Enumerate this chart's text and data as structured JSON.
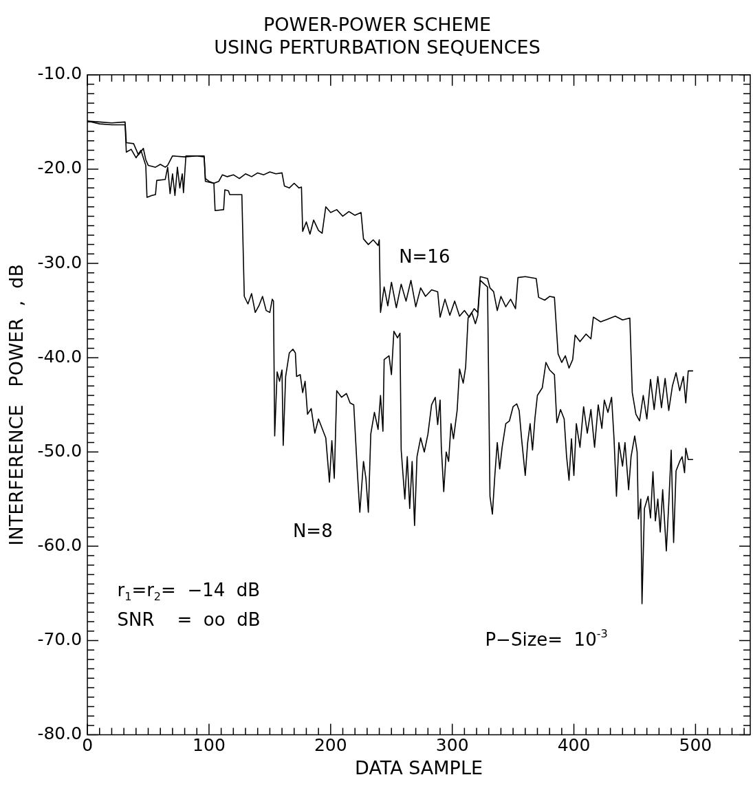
{
  "chart_data": {
    "type": "line",
    "title": "POWER-POWER SCHEME\nUSING PERTURBATION SEQUENCES",
    "xlabel": "DATA SAMPLE",
    "ylabel": "INTERFERENCE   POWER  ,  dB",
    "annotations": [
      "r$_{1}$=r$_{2}$=  −14  dB",
      "SNR    =  oo  dB",
      "P−Size=  10$^{-3}$"
    ],
    "xlim": [
      0,
      545
    ],
    "ylim": [
      -80,
      -10
    ],
    "xticks": [
      0,
      {
        "value": 10,
        "label": null
      },
      {
        "value": 20,
        "label": null
      },
      {
        "value": 30,
        "label": null
      },
      {
        "value": 40,
        "label": null
      },
      {
        "value": 50,
        "label": null
      },
      {
        "value": 60,
        "label": null
      },
      {
        "value": 70,
        "label": null
      },
      {
        "value": 80,
        "label": null
      },
      {
        "value": 90,
        "label": null
      },
      100,
      {
        "value": 110,
        "label": null
      },
      {
        "value": 120,
        "label": null
      },
      {
        "value": 130,
        "label": null
      },
      {
        "value": 140,
        "label": null
      },
      {
        "value": 150,
        "label": null
      },
      {
        "value": 160,
        "label": null
      },
      {
        "value": 170,
        "label": null
      },
      {
        "value": 180,
        "label": null
      },
      {
        "value": 190,
        "label": null
      },
      200,
      {
        "value": 210,
        "label": null
      },
      {
        "value": 220,
        "label": null
      },
      {
        "value": 230,
        "label": null
      },
      {
        "value": 240,
        "label": null
      },
      {
        "value": 250,
        "label": null
      },
      {
        "value": 260,
        "label": null
      },
      {
        "value": 270,
        "label": null
      },
      {
        "value": 280,
        "label": null
      },
      {
        "value": 290,
        "label": null
      },
      300,
      {
        "value": 310,
        "label": null
      },
      {
        "value": 320,
        "label": null
      },
      {
        "value": 330,
        "label": null
      },
      {
        "value": 340,
        "label": null
      },
      {
        "value": 350,
        "label": null
      },
      {
        "value": 360,
        "label": null
      },
      {
        "value": 370,
        "label": null
      },
      {
        "value": 380,
        "label": null
      },
      {
        "value": 390,
        "label": null
      },
      400,
      {
        "value": 410,
        "label": null
      },
      {
        "value": 420,
        "label": null
      },
      {
        "value": 430,
        "label": null
      },
      {
        "value": 440,
        "label": null
      },
      {
        "value": 450,
        "label": null
      },
      {
        "value": 460,
        "label": null
      },
      {
        "value": 470,
        "label": null
      },
      {
        "value": 480,
        "label": null
      },
      {
        "value": 490,
        "label": null
      },
      500,
      {
        "value": 510,
        "label": null
      },
      {
        "value": 520,
        "label": null
      },
      {
        "value": 530,
        "label": null
      },
      {
        "value": 540,
        "label": null
      }
    ],
    "yticks": [
      {
        "value": -80,
        "label": "-80.0"
      },
      {
        "value": -79,
        "label": null
      },
      {
        "value": -78,
        "label": null
      },
      {
        "value": -77,
        "label": null
      },
      {
        "value": -76,
        "label": null
      },
      {
        "value": -75,
        "label": null
      },
      {
        "value": -74,
        "label": null
      },
      {
        "value": -73,
        "label": null
      },
      {
        "value": -72,
        "label": null
      },
      {
        "value": -71,
        "label": null
      },
      {
        "value": -70,
        "label": "-70.0"
      },
      {
        "value": -69,
        "label": null
      },
      {
        "value": -68,
        "label": null
      },
      {
        "value": -67,
        "label": null
      },
      {
        "value": -66,
        "label": null
      },
      {
        "value": -65,
        "label": null
      },
      {
        "value": -64,
        "label": null
      },
      {
        "value": -63,
        "label": null
      },
      {
        "value": -62,
        "label": null
      },
      {
        "value": -61,
        "label": null
      },
      {
        "value": -60,
        "label": "-60.0"
      },
      {
        "value": -59,
        "label": null
      },
      {
        "value": -58,
        "label": null
      },
      {
        "value": -57,
        "label": null
      },
      {
        "value": -56,
        "label": null
      },
      {
        "value": -55,
        "label": null
      },
      {
        "value": -54,
        "label": null
      },
      {
        "value": -53,
        "label": null
      },
      {
        "value": -52,
        "label": null
      },
      {
        "value": -51,
        "label": null
      },
      {
        "value": -50,
        "label": "-50.0"
      },
      {
        "value": -49,
        "label": null
      },
      {
        "value": -48,
        "label": null
      },
      {
        "value": -47,
        "label": null
      },
      {
        "value": -46,
        "label": null
      },
      {
        "value": -45,
        "label": null
      },
      {
        "value": -44,
        "label": null
      },
      {
        "value": -43,
        "label": null
      },
      {
        "value": -42,
        "label": null
      },
      {
        "value": -41,
        "label": null
      },
      {
        "value": -40,
        "label": "-40.0"
      },
      {
        "value": -39,
        "label": null
      },
      {
        "value": -38,
        "label": null
      },
      {
        "value": -37,
        "label": null
      },
      {
        "value": -36,
        "label": null
      },
      {
        "value": -35,
        "label": null
      },
      {
        "value": -34,
        "label": null
      },
      {
        "value": -33,
        "label": null
      },
      {
        "value": -32,
        "label": null
      },
      {
        "value": -31,
        "label": null
      },
      {
        "value": -30,
        "label": "-30.0"
      },
      {
        "value": -29,
        "label": null
      },
      {
        "value": -28,
        "label": null
      },
      {
        "value": -27,
        "label": null
      },
      {
        "value": -26,
        "label": null
      },
      {
        "value": -25,
        "label": null
      },
      {
        "value": -24,
        "label": null
      },
      {
        "value": -23,
        "label": null
      },
      {
        "value": -22,
        "label": null
      },
      {
        "value": -21,
        "label": null
      },
      {
        "value": -20,
        "label": "-20.0"
      },
      {
        "value": -19,
        "label": null
      },
      {
        "value": -18,
        "label": null
      },
      {
        "value": -17,
        "label": null
      },
      {
        "value": -16,
        "label": null
      },
      {
        "value": -15,
        "label": null
      },
      {
        "value": -14,
        "label": null
      },
      {
        "value": -13,
        "label": null
      },
      {
        "value": -12,
        "label": null
      },
      {
        "value": -11,
        "label": null
      },
      {
        "value": -10,
        "label": "-10.0"
      }
    ],
    "series": [
      {
        "name": "N=16",
        "color": "#000000",
        "x": [
          0,
          10,
          20,
          31,
          32,
          38,
          42,
          46,
          48,
          50,
          56,
          60,
          64,
          66,
          70,
          80,
          90,
          96,
          97,
          100,
          104,
          108,
          111,
          115,
          120,
          125,
          130,
          135,
          140,
          145,
          150,
          155,
          160,
          162,
          166,
          170,
          174,
          176,
          177,
          180,
          183,
          186,
          190,
          193,
          196,
          200,
          205,
          210,
          215,
          220,
          225,
          227,
          231,
          235,
          239,
          240,
          241,
          244,
          247,
          250,
          254,
          258,
          262,
          266,
          270,
          274,
          278,
          283,
          288,
          290,
          294,
          298,
          302,
          306,
          310,
          314,
          318,
          321,
          323,
          329,
          331,
          334,
          337,
          340,
          344,
          348,
          352,
          354,
          360,
          369,
          371,
          376,
          380,
          384,
          387,
          390,
          393,
          396,
          399,
          401,
          405,
          410,
          414,
          416,
          422,
          428,
          434,
          440,
          446,
          448,
          451,
          454,
          457,
          460,
          463,
          466,
          469,
          472,
          475,
          478,
          481,
          484,
          487,
          490,
          492,
          494,
          498
        ],
        "values": [
          -14.9,
          -15.0,
          -15.1,
          -15.0,
          -17.2,
          -17.3,
          -18.5,
          -17.8,
          -19.0,
          -19.6,
          -19.8,
          -19.5,
          -19.8,
          -19.6,
          -18.6,
          -18.7,
          -18.6,
          -18.6,
          -21.0,
          -21.3,
          -21.5,
          -21.3,
          -20.6,
          -20.8,
          -20.6,
          -21.0,
          -20.5,
          -20.8,
          -20.4,
          -20.6,
          -20.3,
          -20.5,
          -20.4,
          -21.8,
          -22.0,
          -21.5,
          -22.0,
          -21.9,
          -26.6,
          -25.6,
          -26.9,
          -25.4,
          -26.5,
          -26.8,
          -24.0,
          -24.6,
          -24.3,
          -25.0,
          -24.5,
          -24.9,
          -24.6,
          -27.4,
          -28.0,
          -27.5,
          -28.1,
          -27.5,
          -35.2,
          -32.5,
          -34.5,
          -32.0,
          -34.7,
          -32.2,
          -34.0,
          -31.8,
          -34.6,
          -32.6,
          -33.5,
          -32.8,
          -33.0,
          -35.7,
          -33.8,
          -35.5,
          -34.0,
          -35.6,
          -35.0,
          -35.7,
          -34.8,
          -35.2,
          -31.4,
          -31.6,
          -32.6,
          -33.0,
          -35.0,
          -33.5,
          -34.6,
          -33.8,
          -34.8,
          -31.5,
          -31.4,
          -31.6,
          -33.6,
          -33.9,
          -33.5,
          -33.6,
          -39.6,
          -40.5,
          -39.8,
          -41.1,
          -40.2,
          -37.6,
          -38.3,
          -37.5,
          -38.0,
          -35.7,
          -36.2,
          -35.9,
          -35.6,
          -36.0,
          -35.8,
          -43.7,
          -46.0,
          -46.7,
          -44.0,
          -46.5,
          -42.3,
          -45.5,
          -42.0,
          -45.3,
          -42.2,
          -45.6,
          -43.0,
          -41.6,
          -43.5,
          -42.0,
          -44.8,
          -41.4,
          -41.4
        ]
      },
      {
        "name": "N=8",
        "color": "#000000",
        "x": [
          0,
          10,
          20,
          31,
          32,
          36,
          40,
          44,
          48,
          49,
          53,
          56,
          57,
          64,
          66,
          68,
          70,
          72,
          74,
          76,
          78,
          79,
          81,
          90,
          96,
          97,
          104,
          105,
          112,
          113,
          116,
          117,
          127,
          129,
          132,
          135,
          138,
          141,
          144,
          147,
          150,
          152,
          153,
          154,
          156,
          158,
          160,
          161,
          163,
          166,
          169,
          171,
          172,
          175,
          177,
          179,
          181,
          184,
          187,
          190,
          193,
          196,
          199,
          201,
          203,
          205,
          209,
          213,
          216,
          219,
          222,
          224,
          227,
          229,
          231,
          233,
          236,
          239,
          241,
          243,
          244,
          248,
          250,
          252,
          255,
          257,
          258,
          261,
          263,
          265,
          267,
          269,
          271,
          274,
          277,
          280,
          283,
          286,
          288,
          290,
          291,
          293,
          295,
          297,
          299,
          301,
          304,
          306,
          309,
          311,
          313,
          316,
          319,
          321,
          323,
          329,
          331,
          333,
          335,
          337,
          339,
          341,
          344,
          347,
          350,
          353,
          355,
          357,
          360,
          362,
          364,
          366,
          368,
          370,
          374,
          377,
          380,
          384,
          386,
          389,
          392,
          394,
          396,
          398,
          400,
          402,
          405,
          408,
          411,
          414,
          417,
          420,
          423,
          425,
          428,
          431,
          433,
          435,
          437,
          440,
          442,
          445,
          447,
          450,
          452,
          453,
          455,
          456,
          458,
          461,
          463,
          465,
          467,
          469,
          471,
          473,
          476,
          478,
          480,
          482,
          484,
          487,
          489,
          491,
          492,
          494,
          498
        ],
        "values": [
          -14.9,
          -15.2,
          -15.3,
          -15.3,
          -18.2,
          -17.9,
          -18.8,
          -18.0,
          -19.6,
          -23.0,
          -22.8,
          -22.7,
          -21.2,
          -21.1,
          -19.8,
          -22.6,
          -20.5,
          -22.8,
          -19.8,
          -22.0,
          -20.5,
          -22.5,
          -18.6,
          -18.6,
          -18.7,
          -21.3,
          -21.5,
          -24.4,
          -24.3,
          -22.2,
          -22.3,
          -22.7,
          -22.7,
          -33.5,
          -34.3,
          -33.2,
          -35.2,
          -34.5,
          -33.5,
          -35.0,
          -35.2,
          -33.8,
          -34.0,
          -48.3,
          -41.5,
          -42.5,
          -41.3,
          -49.3,
          -42.0,
          -39.5,
          -39.1,
          -39.5,
          -42.0,
          -41.8,
          -43.7,
          -42.5,
          -46.0,
          -45.4,
          -48.0,
          -46.5,
          -47.5,
          -48.5,
          -53.2,
          -48.8,
          -52.8,
          -43.5,
          -44.2,
          -43.8,
          -44.8,
          -45.0,
          -52.2,
          -56.4,
          -51.0,
          -52.8,
          -56.4,
          -48.1,
          -45.8,
          -47.6,
          -44.0,
          -47.8,
          -40.2,
          -39.8,
          -41.8,
          -37.2,
          -37.9,
          -37.4,
          -49.8,
          -55.0,
          -50.5,
          -56.0,
          -51.0,
          -57.8,
          -50.5,
          -48.5,
          -50.0,
          -48.1,
          -45.0,
          -44.2,
          -47.1,
          -44.5,
          -49.5,
          -54.2,
          -50.0,
          -51.0,
          -47.0,
          -48.6,
          -45.6,
          -41.2,
          -42.7,
          -41.0,
          -35.8,
          -35.2,
          -36.4,
          -35.5,
          -31.8,
          -32.5,
          -54.7,
          -56.6,
          -52.5,
          -49.0,
          -51.8,
          -49.5,
          -47.0,
          -46.7,
          -45.2,
          -44.9,
          -45.6,
          -48.6,
          -52.5,
          -49.0,
          -47.0,
          -49.8,
          -46.4,
          -44.0,
          -43.2,
          -40.5,
          -41.3,
          -41.8,
          -46.9,
          -45.5,
          -46.5,
          -50.5,
          -53.0,
          -48.6,
          -52.5,
          -47.0,
          -49.5,
          -45.2,
          -48.0,
          -45.5,
          -49.5,
          -45.0,
          -47.5,
          -44.5,
          -45.8,
          -44.2,
          -48.6,
          -54.7,
          -49.0,
          -51.5,
          -49.0,
          -54.0,
          -50.5,
          -48.3,
          -50.0,
          -57.1,
          -55.0,
          -66.1,
          -56.0,
          -54.7,
          -57.0,
          -52.1,
          -57.3,
          -55.0,
          -58.5,
          -54.0,
          -60.5,
          -55.5,
          -49.8,
          -59.6,
          -52.0,
          -51.0,
          -50.5,
          -52.2,
          -49.6,
          -50.8,
          -50.8
        ]
      }
    ]
  }
}
